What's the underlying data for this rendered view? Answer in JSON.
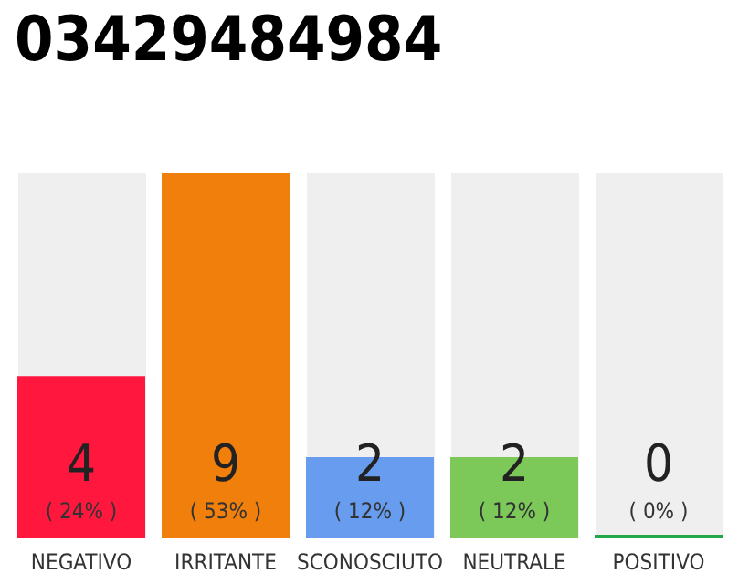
{
  "chart_data": {
    "type": "bar",
    "title": "03429484984",
    "categories": [
      "NEGATIVO",
      "IRRITANTE",
      "SCONOSCIUTO",
      "NEUTRALE",
      "POSITIVO"
    ],
    "values": [
      4,
      9,
      2,
      2,
      0
    ],
    "colors": [
      "#ff173d",
      "#f07f0c",
      "#679cee",
      "#7cc95a",
      "#22a84a"
    ],
    "value_labels": [
      "4\n( 24% )",
      "9\n( 53% )",
      "2\n( 12% )",
      "2\n( 12% )",
      "0\n( 0% )"
    ],
    "grid": false
  }
}
